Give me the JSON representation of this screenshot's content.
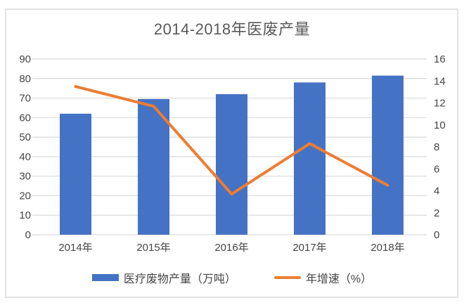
{
  "page": {
    "background_color": "#ffffff",
    "card_border_color": "#e2e2e2",
    "gridline_color": "#d9d9d9",
    "axis_text_color": "#454545",
    "title_color": "#595959"
  },
  "chart_data": {
    "type": "combo-bar-line",
    "title": "2014-2018年医废产量",
    "categories": [
      "2014年",
      "2015年",
      "2016年",
      "2017年",
      "2018年"
    ],
    "series": [
      {
        "name": "医疗废物产量（万吨）",
        "type": "bar",
        "axis": "left",
        "color": "#4472c4",
        "values": [
          62,
          69.5,
          72,
          78,
          81.5
        ]
      },
      {
        "name": "年增速（%）",
        "type": "line",
        "axis": "right",
        "color": "#ed7d31",
        "values": [
          13.5,
          11.7,
          3.7,
          8.3,
          4.5
        ]
      }
    ],
    "left_axis": {
      "min": 0,
      "max": 90,
      "step": 10,
      "ticks": [
        0,
        10,
        20,
        30,
        40,
        50,
        60,
        70,
        80,
        90
      ]
    },
    "right_axis": {
      "min": 0,
      "max": 16,
      "step": 2,
      "ticks": [
        0,
        2,
        4,
        6,
        8,
        10,
        12,
        14,
        16
      ]
    },
    "grid": true,
    "legend_position": "bottom"
  }
}
